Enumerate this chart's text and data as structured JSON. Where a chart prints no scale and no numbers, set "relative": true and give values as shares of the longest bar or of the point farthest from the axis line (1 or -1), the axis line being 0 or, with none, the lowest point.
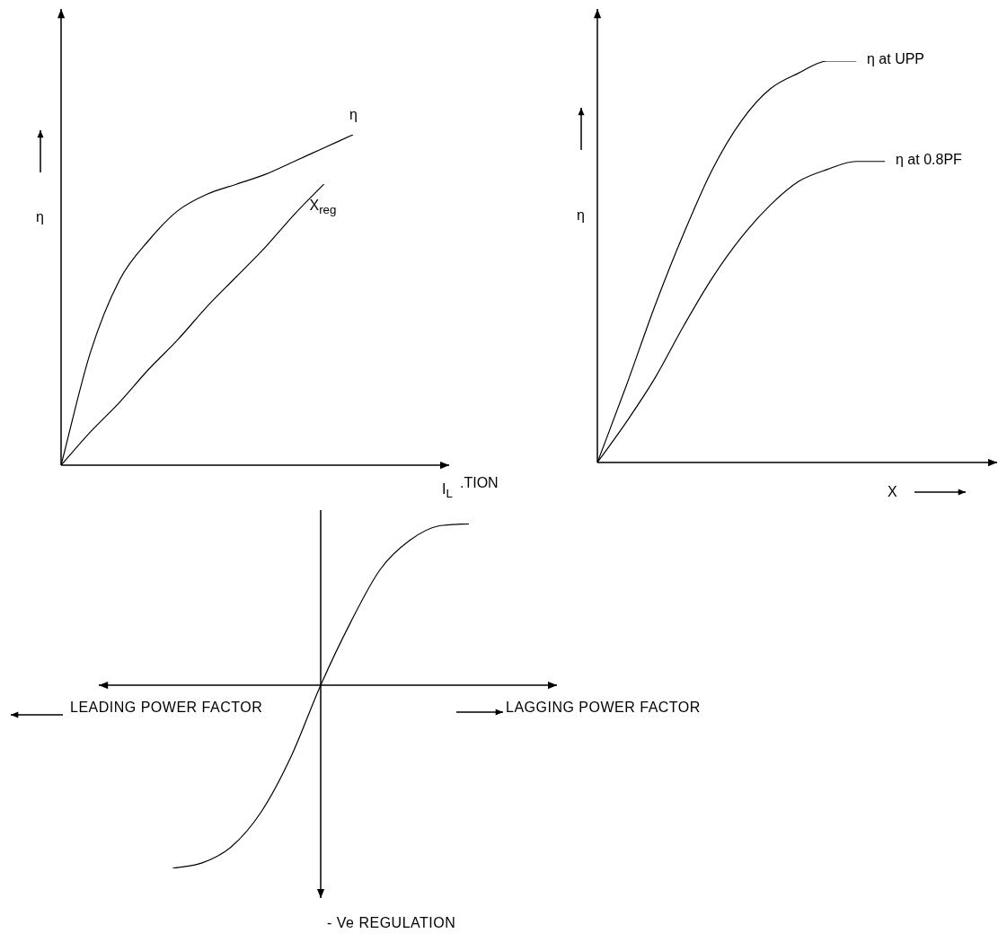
{
  "chart_data": [
    {
      "type": "line",
      "relative": true,
      "xlabel": "I$_{L}$",
      "ylabel": "η",
      "annotations": [
        ".TION"
      ],
      "categories": [
        null,
        null,
        null,
        null,
        null,
        null,
        null,
        null,
        null,
        null,
        null
      ],
      "series": [
        {
          "name": "η",
          "color": "#000000",
          "values": [
            0,
            0.34,
            0.56,
            0.68,
            0.77,
            0.82,
            0.85,
            0.88,
            0.92,
            0.96,
            1
          ]
        },
        {
          "name": "X$_{reg}$",
          "color": "#000000",
          "values": [
            0,
            0.1,
            0.19,
            0.29,
            0.38,
            0.48,
            0.57,
            0.66,
            0.76,
            0.85,
            null
          ]
        }
      ]
    },
    {
      "type": "line",
      "relative": true,
      "xlabel": "X",
      "ylabel": "η",
      "categories": [
        null,
        null,
        null,
        null,
        null,
        null,
        null,
        null,
        null,
        null,
        null
      ],
      "series": [
        {
          "name": "η at UPP",
          "color": "#000000",
          "values": [
            0,
            0.19,
            0.39,
            0.57,
            0.73,
            0.85,
            0.93,
            0.97,
            1,
            1,
            null
          ]
        },
        {
          "name": "η at 0.8PF",
          "color": "#000000",
          "values": [
            0,
            0.1,
            0.21,
            0.34,
            0.46,
            0.56,
            0.64,
            0.7,
            0.73,
            0.75,
            0.75
          ]
        }
      ]
    },
    {
      "type": "line",
      "relative": true,
      "annotations": [
        "LEADING POWER FACTOR",
        "LAGGING POWER FACTOR",
        "- Ve  REGULATION"
      ],
      "categories": [
        null,
        null,
        null,
        null,
        null,
        null,
        null,
        null,
        null,
        null,
        null
      ],
      "series": [
        {
          "color": "#000000",
          "values": [
            -1,
            -0.97,
            -0.88,
            -0.69,
            -0.39,
            0,
            0.34,
            0.63,
            0.79,
            0.87,
            0.88
          ]
        }
      ]
    }
  ]
}
